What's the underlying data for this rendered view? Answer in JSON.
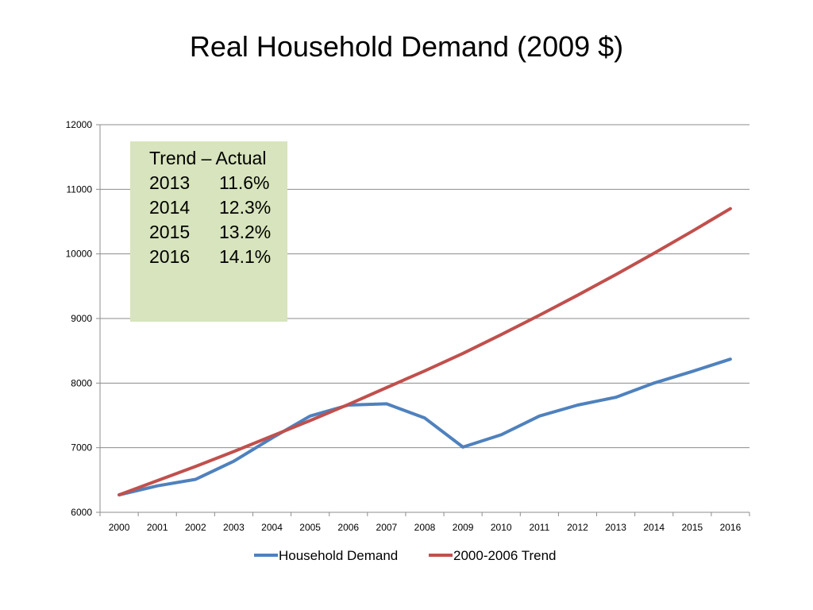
{
  "chart_data": {
    "type": "line",
    "title": "Real Household Demand (2009 $)",
    "xlabel": "",
    "ylabel": "",
    "x": [
      "2000",
      "2001",
      "2002",
      "2003",
      "2004",
      "2005",
      "2006",
      "2007",
      "2008",
      "2009",
      "2010",
      "2011",
      "2012",
      "2013",
      "2014",
      "2015",
      "2016"
    ],
    "ylim": [
      6000,
      12000
    ],
    "yticks": [
      6000,
      7000,
      8000,
      9000,
      10000,
      11000,
      12000
    ],
    "grid": true,
    "legend_position": "bottom",
    "series": [
      {
        "name": "Household Demand",
        "color": "#4F81BD",
        "values": [
          6270,
          6410,
          6510,
          6790,
          7150,
          7490,
          7660,
          7680,
          7460,
          7010,
          7200,
          7490,
          7660,
          7780,
          8000,
          8180,
          8370
        ]
      },
      {
        "name": "2000-2006 Trend",
        "color": "#C0504D",
        "values": [
          6270,
          6490,
          6710,
          6940,
          7180,
          7420,
          7670,
          7930,
          8190,
          8460,
          8750,
          9050,
          9360,
          9680,
          10010,
          10350,
          10700
        ]
      }
    ],
    "annotation": {
      "background": "#D7E4BD",
      "heading": "Trend – Actual",
      "rows": [
        {
          "year": "2013",
          "value": "11.6%"
        },
        {
          "year": "2014",
          "value": "12.3%"
        },
        {
          "year": "2015",
          "value": "13.2%"
        },
        {
          "year": "2016",
          "value": "14.1%"
        }
      ]
    }
  }
}
